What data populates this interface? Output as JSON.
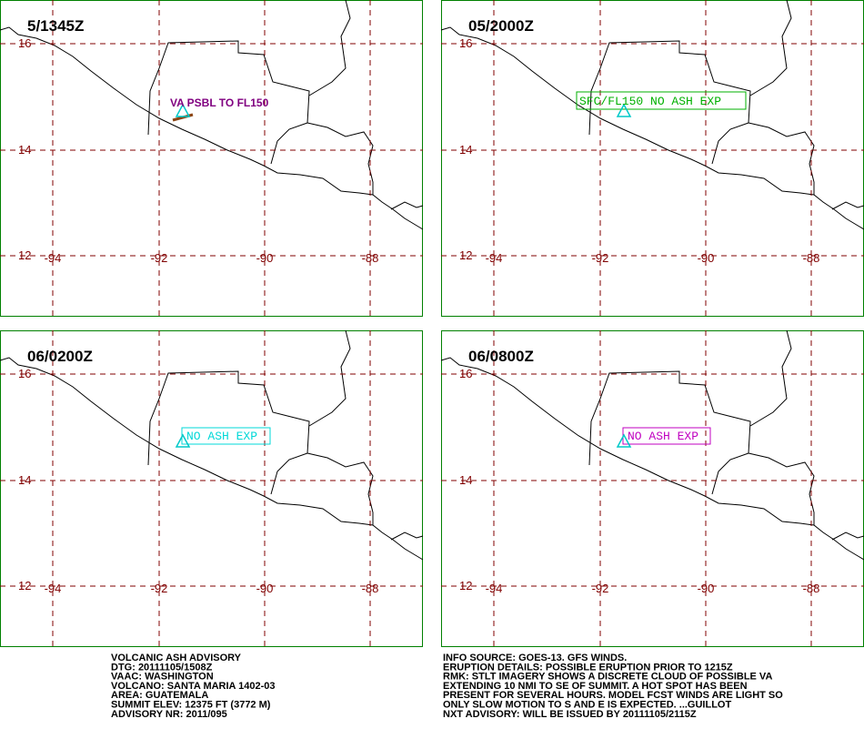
{
  "panels": [
    {
      "title": "5/1345Z",
      "lat_labels": [
        "16",
        "14",
        "12"
      ],
      "lon_labels": [
        "-94",
        "-92",
        "-90",
        "-88"
      ],
      "annotation": "VA PSBL TO FL150"
    },
    {
      "title": "05/2000Z",
      "lat_labels": [
        "16",
        "14",
        "12"
      ],
      "lon_labels": [
        "-94",
        "-92",
        "-90",
        "-88"
      ],
      "annotation": "SFC/FL150 NO ASH EXP"
    },
    {
      "title": "06/0200Z",
      "lat_labels": [
        "16",
        "14",
        "12"
      ],
      "lon_labels": [
        "-94",
        "-92",
        "-90",
        "-88"
      ],
      "annotation": "NO ASH EXP"
    },
    {
      "title": "06/0800Z",
      "lat_labels": [
        "16",
        "14",
        "12"
      ],
      "lon_labels": [
        "-94",
        "-92",
        "-90",
        "-88"
      ],
      "annotation": "NO ASH EXP"
    }
  ],
  "advisory": {
    "left": [
      "VOLCANIC ASH ADVISORY",
      "DTG: 20111105/1508Z",
      "VAAC: WASHINGTON",
      "VOLCANO: SANTA MARIA 1402-03",
      "AREA: GUATEMALA",
      "SUMMIT ELEV: 12375 FT (3772 M)",
      "ADVISORY NR: 2011/095"
    ],
    "right": [
      "INFO SOURCE: GOES-13. GFS WINDS.",
      "ERUPTION DETAILS: POSSIBLE ERUPTION PRIOR TO 1215Z",
      "RMK: STLT IMAGERY SHOWS A DISCRETE CLOUD OF POSSIBLE VA",
      "EXTENDING 10 NMI TO SE OF SUMMIT. A HOT SPOT HAS BEEN",
      "PRESENT FOR SEVERAL HOURS. MODEL FCST WINDS ARE LIGHT SO",
      "ONLY SLOW MOTION TO S AND E IS EXPECTED. ...GUILLOT",
      "NXT ADVISORY: WILL BE ISSUED BY 20111105/2115Z"
    ]
  }
}
